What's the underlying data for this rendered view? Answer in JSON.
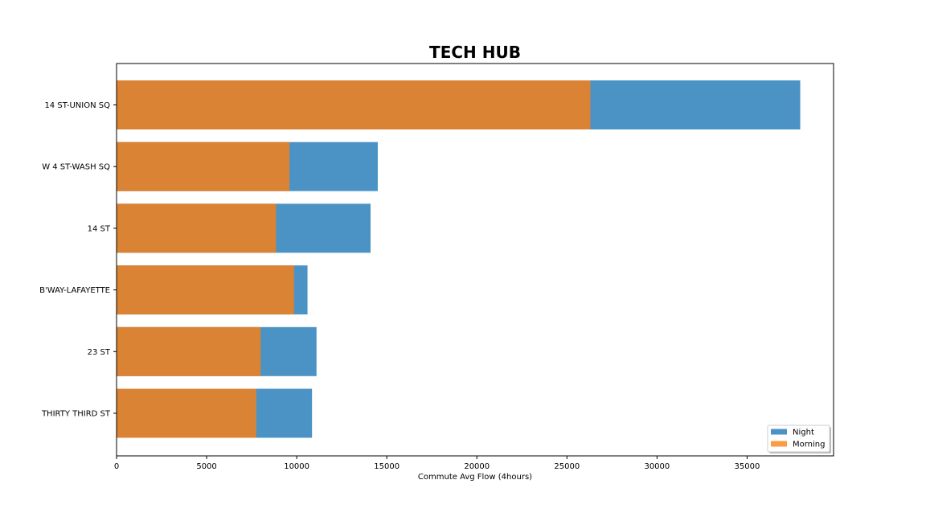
{
  "chart_data": {
    "type": "bar",
    "orientation": "horizontal",
    "stacked": false,
    "overlay": true,
    "title": "TECH HUB",
    "xlabel": "Commute Avg Flow (4hours)",
    "ylabel": "",
    "categories": [
      "14 ST-UNION SQ",
      "W 4 ST-WASH SQ",
      "14 ST",
      "B'WAY-LAFAYETTE",
      "23 ST",
      "THIRTY THIRD ST"
    ],
    "series": [
      {
        "name": "Night",
        "color": "#4c93c5",
        "values": [
          37950,
          14500,
          14100,
          10600,
          11100,
          10850
        ]
      },
      {
        "name": "Morning",
        "color": "#db8334",
        "values": [
          26300,
          9600,
          8850,
          9850,
          8000,
          7750
        ]
      }
    ],
    "xlim": [
      0,
      39800
    ],
    "xticks": [
      0,
      5000,
      10000,
      15000,
      20000,
      25000,
      30000,
      35000
    ],
    "legend": {
      "placement": "bottom-right",
      "entries": [
        {
          "label": "Night",
          "color": "#4c93c5"
        },
        {
          "label": "Morning",
          "color": "#fd9a44"
        }
      ]
    },
    "grid": false
  }
}
